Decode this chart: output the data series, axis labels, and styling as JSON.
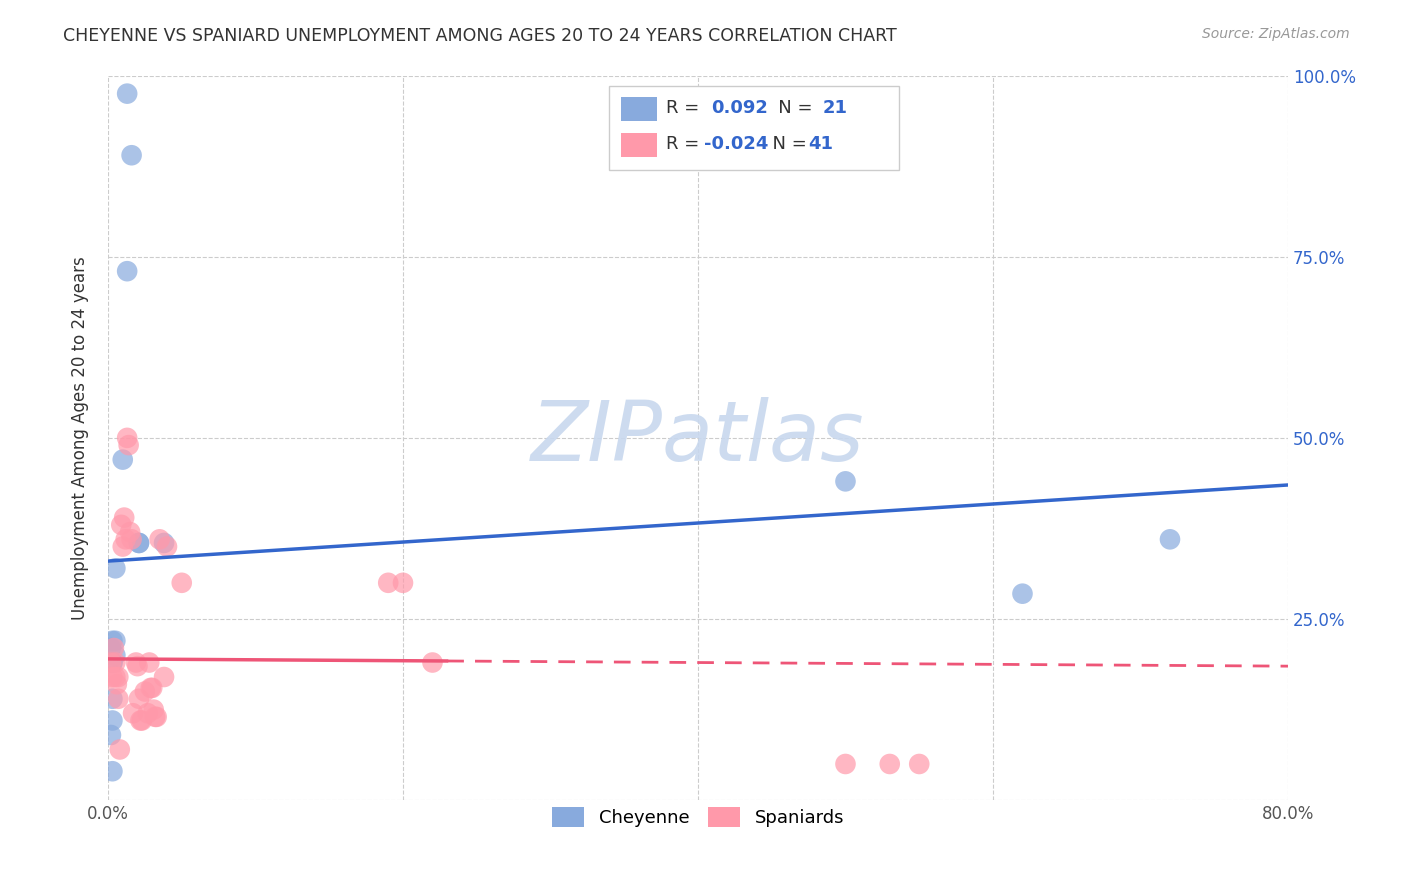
{
  "title": "CHEYENNE VS SPANIARD UNEMPLOYMENT AMONG AGES 20 TO 24 YEARS CORRELATION CHART",
  "source": "Source: ZipAtlas.com",
  "ylabel": "Unemployment Among Ages 20 to 24 years",
  "xlim": [
    0.0,
    0.8
  ],
  "ylim": [
    0.0,
    1.0
  ],
  "y_ticks": [
    0.0,
    0.25,
    0.5,
    0.75,
    1.0
  ],
  "y_tick_labels": [
    "",
    "25.0%",
    "50.0%",
    "75.0%",
    "100.0%"
  ],
  "cheyenne_R": "0.092",
  "cheyenne_N": "21",
  "spaniard_R": "-0.024",
  "spaniard_N": "41",
  "cheyenne_color": "#88AADD",
  "spaniard_color": "#FF99AA",
  "cheyenne_line_color": "#3366CC",
  "spaniard_line_color": "#EE5577",
  "watermark_color": "#C8D8EE",
  "cheyenne_x": [
    0.013,
    0.016,
    0.013,
    0.01,
    0.005,
    0.005,
    0.005,
    0.003,
    0.003,
    0.003,
    0.002,
    0.003,
    0.003,
    0.002,
    0.003,
    0.021,
    0.021,
    0.038,
    0.5,
    0.62,
    0.72
  ],
  "cheyenne_y": [
    0.975,
    0.89,
    0.73,
    0.47,
    0.32,
    0.22,
    0.2,
    0.19,
    0.19,
    0.22,
    0.21,
    0.14,
    0.11,
    0.09,
    0.04,
    0.355,
    0.355,
    0.355,
    0.44,
    0.285,
    0.36
  ],
  "spaniard_x": [
    0.002,
    0.003,
    0.004,
    0.005,
    0.005,
    0.006,
    0.007,
    0.007,
    0.008,
    0.009,
    0.01,
    0.011,
    0.012,
    0.013,
    0.014,
    0.015,
    0.016,
    0.017,
    0.019,
    0.02,
    0.021,
    0.022,
    0.023,
    0.025,
    0.027,
    0.028,
    0.029,
    0.03,
    0.031,
    0.032,
    0.033,
    0.035,
    0.038,
    0.04,
    0.05,
    0.19,
    0.2,
    0.22,
    0.5,
    0.53,
    0.55
  ],
  "spaniard_y": [
    0.19,
    0.17,
    0.21,
    0.19,
    0.17,
    0.16,
    0.17,
    0.14,
    0.07,
    0.38,
    0.35,
    0.39,
    0.36,
    0.5,
    0.49,
    0.37,
    0.36,
    0.12,
    0.19,
    0.185,
    0.14,
    0.11,
    0.11,
    0.15,
    0.12,
    0.19,
    0.155,
    0.155,
    0.125,
    0.115,
    0.115,
    0.36,
    0.17,
    0.35,
    0.3,
    0.3,
    0.3,
    0.19,
    0.05,
    0.05,
    0.05
  ],
  "cheyenne_line_x0": 0.0,
  "cheyenne_line_y0": 0.33,
  "cheyenne_line_x1": 0.8,
  "cheyenne_line_y1": 0.435,
  "spaniard_line_x0": 0.0,
  "spaniard_line_y0": 0.195,
  "spaniard_line_x1": 0.8,
  "spaniard_line_y1": 0.185
}
